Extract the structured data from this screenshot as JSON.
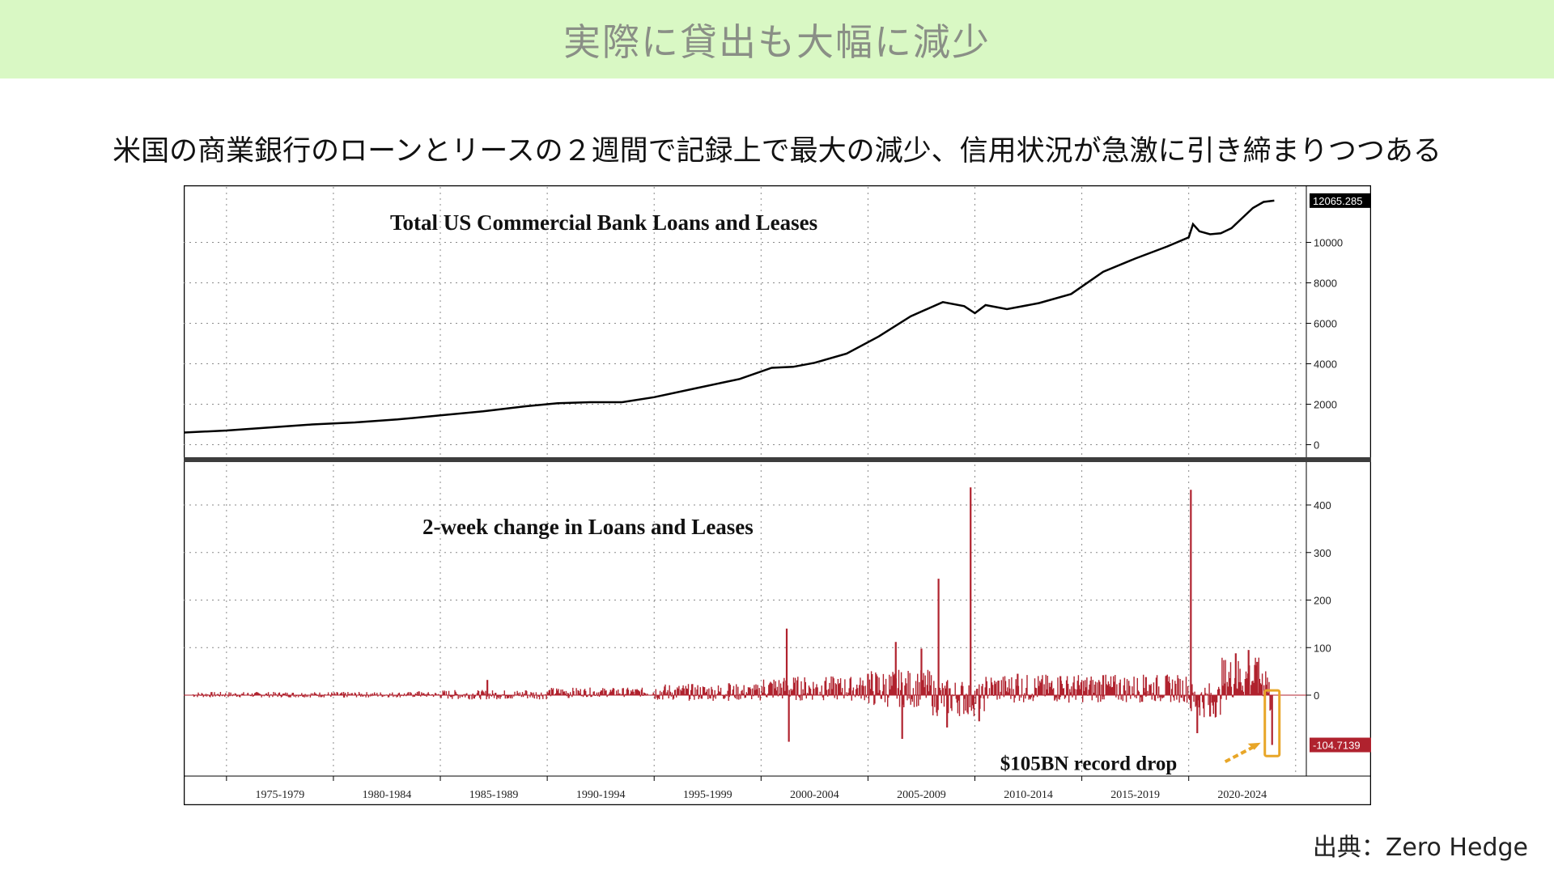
{
  "page": {
    "banner_title": "実際に貸出も大幅に減少",
    "subtitle": "米国の商業銀行のローンとリースの２週間で記録上で最大の減少、信用状況が急激に引き締まりつつある",
    "source": "出典：Zero Hedge"
  },
  "colors": {
    "banner_bg": "#d9f8c4",
    "line_top": "#000000",
    "bars_bottom": "#b0222e",
    "highlight_box": "#e8a628",
    "last_value_badge_top": "#000000",
    "last_value_badge_bottom": "#b0222e"
  },
  "chart_data": [
    {
      "type": "line",
      "title": "Total US Commercial Bank Loans and Leases",
      "ylim": [
        -300,
        12500
      ],
      "yticks": [
        0,
        2000,
        4000,
        6000,
        8000,
        10000
      ],
      "last_value_label": "12065.285",
      "grid": true,
      "series": [
        {
          "x": [
            1973.0,
            1975.0,
            1977.0,
            1979.0,
            1981.0,
            1983.0,
            1985.0,
            1987.0,
            1989.0,
            1990.5,
            1992.0,
            1993.5,
            1995.0,
            1997.0,
            1999.0,
            2000.5,
            2001.5,
            2002.5,
            2004.0,
            2005.5,
            2007.0,
            2008.5,
            2009.5,
            2010.0,
            2010.5,
            2011.5,
            2013.0,
            2014.5,
            2016.0,
            2017.5,
            2019.0,
            2020.0,
            2020.2,
            2020.5,
            2021.0,
            2021.5,
            2022.0,
            2022.5,
            2023.0,
            2023.5,
            2024.0
          ],
          "y": [
            600,
            700,
            850,
            1000,
            1100,
            1250,
            1450,
            1650,
            1900,
            2050,
            2100,
            2100,
            2350,
            2800,
            3250,
            3800,
            3850,
            4050,
            4500,
            5350,
            6350,
            7050,
            6850,
            6500,
            6900,
            6700,
            7000,
            7450,
            8550,
            9200,
            9800,
            10250,
            10900,
            10550,
            10400,
            10450,
            10700,
            11200,
            11700,
            12000,
            12065
          ]
        }
      ]
    },
    {
      "type": "bar",
      "title": "2-week change in Loans and Leases",
      "ylim": [
        -160,
        480
      ],
      "yticks": [
        0,
        100,
        200,
        300,
        400
      ],
      "last_value_label": "-104.7139",
      "annotation": "$105BN record drop",
      "grid": true,
      "spikes": [
        {
          "x": 1976.0,
          "y": 3
        },
        {
          "x": 1980.5,
          "y": -5
        },
        {
          "x": 1984.0,
          "y": 8
        },
        {
          "x": 1987.2,
          "y": 32
        },
        {
          "x": 1989.0,
          "y": 10
        },
        {
          "x": 1991.0,
          "y": -6
        },
        {
          "x": 1993.0,
          "y": 5
        },
        {
          "x": 1995.5,
          "y": 14
        },
        {
          "x": 1998.5,
          "y": 25
        },
        {
          "x": 2001.2,
          "y": 140
        },
        {
          "x": 2001.3,
          "y": -98
        },
        {
          "x": 2003.0,
          "y": 30
        },
        {
          "x": 2005.0,
          "y": 45
        },
        {
          "x": 2006.3,
          "y": 112
        },
        {
          "x": 2006.6,
          "y": -92
        },
        {
          "x": 2007.5,
          "y": 98
        },
        {
          "x": 2008.3,
          "y": 245
        },
        {
          "x": 2008.7,
          "y": -68
        },
        {
          "x": 2009.8,
          "y": 437
        },
        {
          "x": 2010.2,
          "y": -55
        },
        {
          "x": 2012.0,
          "y": 45
        },
        {
          "x": 2014.0,
          "y": 40
        },
        {
          "x": 2016.0,
          "y": 42
        },
        {
          "x": 2018.0,
          "y": 38
        },
        {
          "x": 2020.1,
          "y": 432
        },
        {
          "x": 2020.4,
          "y": -80
        },
        {
          "x": 2021.0,
          "y": -45
        },
        {
          "x": 2022.2,
          "y": 88
        },
        {
          "x": 2022.8,
          "y": 95
        },
        {
          "x": 2023.2,
          "y": 70
        },
        {
          "x": 2023.9,
          "y": -104.7139
        }
      ]
    }
  ],
  "x_axis": {
    "categories": [
      "1975-1979",
      "1980-1984",
      "1985-1989",
      "1990-1994",
      "1995-1999",
      "2000-2004",
      "2005-2009",
      "2010-2014",
      "2015-2019",
      "2020-2024"
    ],
    "range": [
      1973.0,
      2025.5
    ]
  }
}
